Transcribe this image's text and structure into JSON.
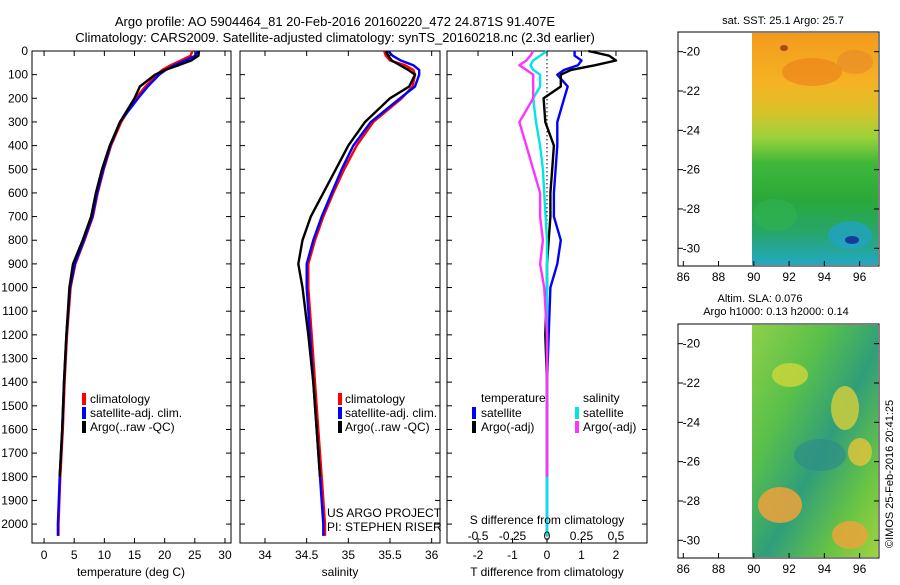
{
  "header": {
    "title_line1": "Argo profile: AO 5904464_81 20-Feb-2016 20160220_472 24.871S 91.407E",
    "title_line2": "Climatology: CARS2009. Satellite-adjusted climatology: synTS_20160218.nc (2.3d earlier)"
  },
  "colors": {
    "climatology": "#ff0000",
    "satellite": "#0000ff",
    "argo": "#000000",
    "sal_satellite": "#00e5e5",
    "sal_argo": "#ff33ff"
  },
  "depth_ticks": [
    "0",
    "100",
    "200",
    "300",
    "400",
    "500",
    "600",
    "700",
    "800",
    "900",
    "1000",
    "1100",
    "1200",
    "1300",
    "1400",
    "1500",
    "1600",
    "1700",
    "1800",
    "1900",
    "2000"
  ],
  "project_note": {
    "line1": "US ARGO PROJECT",
    "line2": "PI: STEPHEN RISER"
  },
  "map_sst": {
    "title": "sat. SST: 25.1  Argo: 25.7"
  },
  "map_sla": {
    "title_line1": "Altim. SLA: 0.076",
    "title_line2": "Argo h1000: 0.13 h2000: 0.14"
  },
  "map_yticks": [
    "-20",
    "-22",
    "-24",
    "-26",
    "-28",
    "-30"
  ],
  "map_xticks": [
    "86",
    "88",
    "90",
    "92",
    "94",
    "96"
  ],
  "footer_stamp": "©IMOS 25-Feb-2016 20:41:25",
  "chart_data": [
    {
      "type": "line",
      "panel": "temperature",
      "xlabel": "temperature (deg C)",
      "ylabel": "",
      "xlim": [
        -2,
        31
      ],
      "ylim": [
        2080,
        0
      ],
      "xticks": [
        "0",
        "5",
        "10",
        "15",
        "20",
        "25",
        "30"
      ],
      "legend": {
        "placement": "bottom-right",
        "items": [
          "climatology",
          "satellite-adj. clim.",
          "Argo(..raw -QC)"
        ]
      },
      "depth": [
        0,
        20,
        40,
        60,
        80,
        100,
        150,
        200,
        300,
        400,
        500,
        600,
        700,
        800,
        900,
        1000,
        1200,
        1400,
        1600,
        1800,
        2000,
        2050
      ],
      "series": [
        {
          "name": "climatology",
          "color": "#ff0000",
          "values": [
            24.6,
            24.3,
            22.7,
            21.0,
            19.6,
            18.7,
            16.8,
            15.2,
            12.8,
            11.1,
            9.9,
            8.9,
            8.1,
            6.7,
            5.2,
            4.4,
            3.8,
            3.4,
            3.1,
            2.7,
            2.4,
            2.4
          ]
        },
        {
          "name": "satellite-adj. clim.",
          "color": "#0000ff",
          "values": [
            25.4,
            25.1,
            23.4,
            21.6,
            20.2,
            19.1,
            17.2,
            15.6,
            12.6,
            11.0,
            9.8,
            8.8,
            8.0,
            6.6,
            5.1,
            4.3,
            3.7,
            3.3,
            3.0,
            2.6,
            2.3,
            2.3
          ]
        },
        {
          "name": "Argo(..raw -QC)",
          "color": "#000000",
          "values": [
            25.7,
            25.6,
            24.4,
            22.3,
            20.1,
            18.4,
            15.9,
            15.0,
            12.6,
            10.9,
            9.6,
            8.6,
            7.8,
            6.4,
            4.8,
            4.2,
            3.7,
            3.3,
            3.0,
            2.6,
            null,
            null
          ]
        }
      ]
    },
    {
      "type": "line",
      "panel": "salinity",
      "xlabel": "salinity",
      "ylabel": "",
      "xlim": [
        33.7,
        36.1
      ],
      "ylim": [
        2080,
        0
      ],
      "xticks": [
        "34",
        "34.5",
        "35",
        "35.5",
        "36"
      ],
      "legend": {
        "placement": "bottom-right",
        "items": [
          "climatology",
          "satellite-adj. clim.",
          "Argo(..raw -QC)"
        ]
      },
      "depth": [
        0,
        20,
        40,
        60,
        80,
        100,
        150,
        200,
        300,
        400,
        500,
        600,
        700,
        800,
        900,
        1000,
        1200,
        1400,
        1600,
        1800,
        2000,
        2050
      ],
      "series": [
        {
          "name": "climatology",
          "color": "#ff0000",
          "values": [
            35.43,
            35.45,
            35.5,
            35.68,
            35.78,
            35.8,
            35.77,
            35.64,
            35.3,
            35.1,
            34.95,
            34.82,
            34.7,
            34.6,
            34.52,
            34.52,
            34.56,
            34.6,
            34.64,
            34.68,
            34.72,
            34.72
          ]
        },
        {
          "name": "satellite-adj. clim.",
          "color": "#0000ff",
          "values": [
            35.48,
            35.53,
            35.63,
            35.78,
            35.85,
            35.85,
            35.8,
            35.62,
            35.27,
            35.06,
            34.92,
            34.8,
            34.68,
            34.58,
            34.5,
            34.5,
            34.54,
            34.58,
            34.62,
            34.66,
            34.7,
            34.7
          ]
        },
        {
          "name": "Argo(..raw -QC)",
          "color": "#000000",
          "values": [
            35.45,
            35.48,
            35.52,
            35.62,
            35.72,
            35.8,
            35.73,
            35.5,
            35.2,
            35.0,
            34.85,
            34.7,
            34.55,
            34.45,
            34.4,
            34.45,
            34.52,
            34.58,
            34.62,
            34.66,
            null,
            null
          ]
        }
      ]
    },
    {
      "type": "line",
      "panel": "differences",
      "xlabel": "T difference from climatology",
      "xlabel_top": "S difference from climatology",
      "xlim": [
        -2.9,
        2.9
      ],
      "ylim": [
        2080,
        0
      ],
      "xticks": [
        "-2",
        "-1",
        "0",
        "1",
        "2"
      ],
      "xticks_salinity": [
        "-0.5",
        "-0.25",
        "0",
        "0.25",
        "0.5"
      ],
      "legend_temperature": {
        "heading": "temperature",
        "items": [
          "satellite",
          "Argo(-adj)"
        ]
      },
      "legend_salinity": {
        "heading": "salinity",
        "items": [
          "satellite",
          "Argo(-adj)"
        ]
      },
      "depth": [
        0,
        20,
        40,
        60,
        80,
        100,
        150,
        200,
        300,
        400,
        500,
        600,
        700,
        800,
        900,
        1000,
        1200,
        1400,
        1600,
        1800,
        2000,
        2050
      ],
      "series": [
        {
          "name": "temperature satellite",
          "color": "#0000ff",
          "values": [
            0.8,
            0.8,
            1.0,
            0.9,
            0.5,
            0.3,
            0.6,
            0.5,
            0.3,
            0.3,
            0.25,
            0.2,
            0.2,
            0.4,
            0.3,
            0.1,
            0.05,
            0.0,
            0.0,
            0.0,
            0.0,
            0.0
          ]
        },
        {
          "name": "temperature Argo(-adj)",
          "color": "#000000",
          "values": [
            1.2,
            1.8,
            2.0,
            1.4,
            0.7,
            0.4,
            0.4,
            -0.1,
            -0.05,
            0.2,
            0.15,
            0.1,
            0.1,
            0.05,
            0.0,
            0.0,
            -0.05,
            0.0,
            0.0,
            0.0,
            null,
            null
          ]
        },
        {
          "name": "salinity satellite",
          "color": "#00e5e5",
          "values": [
            0.0,
            -0.05,
            -0.1,
            -0.12,
            -0.1,
            -0.05,
            -0.05,
            -0.1,
            -0.08,
            -0.05,
            -0.03,
            -0.02,
            -0.01,
            0.0,
            0.0,
            0.0,
            0.0,
            0.0,
            0.0,
            0.0,
            0.0,
            0.0
          ]
        },
        {
          "name": "salinity Argo(-adj)",
          "color": "#ff33ff",
          "values": [
            -0.1,
            -0.12,
            -0.15,
            -0.2,
            -0.15,
            -0.1,
            -0.1,
            -0.1,
            -0.2,
            -0.15,
            -0.1,
            -0.05,
            -0.05,
            -0.03,
            -0.05,
            -0.02,
            0.0,
            0.0,
            0.0,
            0.0,
            null,
            null
          ]
        }
      ]
    }
  ]
}
